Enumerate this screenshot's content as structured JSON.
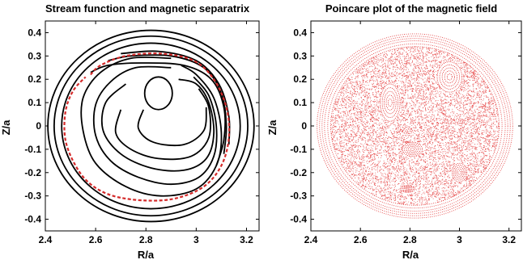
{
  "chart_data": [
    {
      "type": "contour",
      "title": "Stream function and magnetic separatrix",
      "xlabel": "R/a",
      "ylabel": "Z/a",
      "xlim": [
        2.4,
        3.25
      ],
      "ylim": [
        -0.45,
        0.45
      ],
      "xticks": [
        "2.4",
        "2.6",
        "2.8",
        "3",
        "3.2"
      ],
      "yticks": [
        "0.4",
        "0.3",
        "0.2",
        "0.1",
        "0",
        "-0.1",
        "-0.2",
        "-0.3",
        "-0.4"
      ],
      "grid": false,
      "series": [
        {
          "color": "#000000",
          "style": "solid",
          "contours": [
            {
              "kind": "circle",
              "center": [
                2.82,
                0.0
              ],
              "radius": 0.41
            },
            {
              "kind": "circle",
              "center": [
                2.82,
                0.0
              ],
              "radius": 0.385
            },
            {
              "kind": "circle",
              "center": [
                2.82,
                0.0
              ],
              "radius": 0.355
            },
            {
              "kind": "ellipse",
              "center": [
                2.85,
                0.14
              ],
              "rx": 0.055,
              "ry": 0.07
            },
            {
              "kind": "path",
              "points": [
                [
                  2.9,
                  0.29
                ],
                [
                  2.74,
                  0.29
                ],
                [
                  2.62,
                  0.23
                ],
                [
                  2.55,
                  0.12
                ],
                [
                  2.55,
                  -0.02
                ],
                [
                  2.6,
                  -0.16
                ],
                [
                  2.72,
                  -0.26
                ],
                [
                  2.86,
                  -0.3
                ],
                [
                  3.0,
                  -0.27
                ],
                [
                  3.08,
                  -0.17
                ],
                [
                  3.1,
                  -0.03
                ],
                [
                  3.07,
                  0.12
                ],
                [
                  3.0,
                  0.22
                ],
                [
                  2.94,
                  0.26
                ]
              ]
            },
            {
              "kind": "path",
              "points": [
                [
                  2.9,
                  0.25
                ],
                [
                  2.76,
                  0.25
                ],
                [
                  2.66,
                  0.19
                ],
                [
                  2.6,
                  0.09
                ],
                [
                  2.6,
                  -0.04
                ],
                [
                  2.66,
                  -0.15
                ],
                [
                  2.77,
                  -0.22
                ],
                [
                  2.9,
                  -0.25
                ],
                [
                  3.01,
                  -0.22
                ],
                [
                  3.07,
                  -0.13
                ],
                [
                  3.08,
                  0.0
                ],
                [
                  3.05,
                  0.13
                ],
                [
                  2.99,
                  0.21
                ]
              ]
            },
            {
              "kind": "path",
              "points": [
                [
                  2.72,
                  0.18
                ],
                [
                  2.64,
                  0.1
                ],
                [
                  2.63,
                  -0.02
                ],
                [
                  2.7,
                  -0.12
                ],
                [
                  2.82,
                  -0.18
                ],
                [
                  2.95,
                  -0.19
                ],
                [
                  3.04,
                  -0.14
                ],
                [
                  3.07,
                  -0.03
                ],
                [
                  3.05,
                  0.1
                ],
                [
                  3.0,
                  0.18
                ],
                [
                  2.93,
                  0.2
                ]
              ]
            },
            {
              "kind": "path",
              "points": [
                [
                  2.7,
                  0.07
                ],
                [
                  2.68,
                  -0.03
                ],
                [
                  2.74,
                  -0.1
                ],
                [
                  2.85,
                  -0.14
                ],
                [
                  2.98,
                  -0.13
                ],
                [
                  3.05,
                  -0.05
                ],
                [
                  3.05,
                  0.08
                ],
                [
                  3.01,
                  0.16
                ]
              ]
            },
            {
              "kind": "path",
              "points": [
                [
                  2.79,
                  0.07
                ],
                [
                  2.77,
                  -0.01
                ],
                [
                  2.83,
                  -0.07
                ],
                [
                  2.95,
                  -0.08
                ],
                [
                  3.03,
                  -0.02
                ],
                [
                  3.04,
                  0.08
                ]
              ]
            },
            {
              "kind": "path",
              "points": [
                [
                  2.58,
                  0.23
                ],
                [
                  2.65,
                  0.26
                ],
                [
                  2.78,
                  0.27
                ],
                [
                  2.95,
                  0.26
                ],
                [
                  3.06,
                  0.2
                ],
                [
                  3.11,
                  0.08
                ],
                [
                  3.11,
                  -0.06
                ],
                [
                  3.08,
                  -0.17
                ]
              ]
            },
            {
              "kind": "path",
              "points": [
                [
                  2.65,
                  0.28
                ],
                [
                  2.74,
                  0.3
                ],
                [
                  2.9,
                  0.3
                ],
                [
                  3.03,
                  0.25
                ],
                [
                  3.1,
                  0.14
                ],
                [
                  3.12,
                  0.0
                ],
                [
                  3.11,
                  -0.12
                ]
              ]
            },
            {
              "kind": "path",
              "points": [
                [
                  2.7,
                  0.31
                ],
                [
                  2.85,
                  0.32
                ],
                [
                  3.0,
                  0.28
                ],
                [
                  3.09,
                  0.18
                ],
                [
                  3.13,
                  0.04
                ],
                [
                  3.13,
                  -0.08
                ]
              ]
            }
          ]
        },
        {
          "name": "",
          "color": "#d42a2a",
          "style": "dashed",
          "contours": [
            {
              "kind": "path",
              "points": [
                [
                  2.58,
                  0.22
                ],
                [
                  2.62,
                  0.26
                ],
                [
                  2.72,
                  0.3
                ],
                [
                  2.86,
                  0.31
                ],
                [
                  2.99,
                  0.28
                ],
                [
                  3.07,
                  0.2
                ],
                [
                  3.12,
                  0.08
                ],
                [
                  3.13,
                  -0.05
                ],
                [
                  3.1,
                  -0.17
                ],
                [
                  3.03,
                  -0.26
                ],
                [
                  2.92,
                  -0.31
                ],
                [
                  2.8,
                  -0.32
                ],
                [
                  2.67,
                  -0.3
                ],
                [
                  2.58,
                  -0.25
                ],
                [
                  2.52,
                  -0.17
                ],
                [
                  2.48,
                  -0.06
                ],
                [
                  2.48,
                  0.06
                ],
                [
                  2.51,
                  0.15
                ],
                [
                  2.56,
                  0.21
                ]
              ]
            }
          ]
        }
      ]
    },
    {
      "type": "scatter",
      "title": "Poincare plot of the magnetic field",
      "xlabel": "R/a",
      "ylabel": "Z/a",
      "xlim": [
        2.4,
        3.25
      ],
      "ylim": [
        -0.45,
        0.45
      ],
      "xticks": [
        "2.4",
        "2.6",
        "2.8",
        "3",
        "3.2"
      ],
      "yticks": [
        "0.4",
        "0.3",
        "0.2",
        "0.1",
        "0",
        "-0.1",
        "-0.2",
        "-0.3",
        "-0.4"
      ],
      "grid": false,
      "series": [
        {
          "color": "#e01e1e",
          "plasma_center": [
            2.82,
            0.0
          ],
          "plasma_radius": 0.405,
          "outer_surface_radii": [
            0.395,
            0.385,
            0.375,
            0.365,
            0.352,
            0.34
          ],
          "islands": [
            {
              "center": [
                2.72,
                0.1
              ],
              "rx": 0.04,
              "ry": 0.08
            },
            {
              "center": [
                2.96,
                0.21
              ],
              "rx": 0.05,
              "ry": 0.065
            },
            {
              "center": [
                2.81,
                -0.1
              ],
              "rx": 0.04,
              "ry": 0.03
            },
            {
              "center": [
                3.0,
                -0.2
              ],
              "rx": 0.03,
              "ry": 0.04
            },
            {
              "center": [
                2.79,
                -0.27
              ],
              "rx": 0.03,
              "ry": 0.015
            }
          ]
        }
      ]
    }
  ]
}
